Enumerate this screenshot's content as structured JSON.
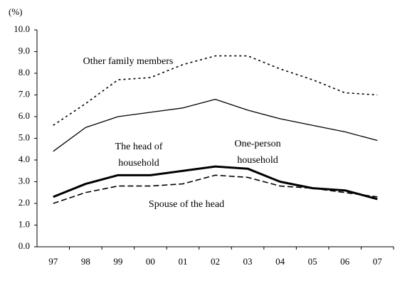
{
  "chart_data": {
    "type": "line",
    "y_label": "(%)",
    "categories": [
      "97",
      "98",
      "99",
      "00",
      "01",
      "02",
      "03",
      "04",
      "05",
      "06",
      "07"
    ],
    "series": [
      {
        "name": "Other family members",
        "color": "#000000",
        "line_style": "dotted",
        "line_width": "medium",
        "values": [
          5.6,
          6.6,
          7.7,
          7.8,
          8.4,
          8.8,
          8.8,
          8.2,
          7.7,
          7.1,
          7.0
        ]
      },
      {
        "name": "The head of household",
        "color": "#000000",
        "line_style": "solid",
        "line_width": "thin",
        "values": [
          4.4,
          5.5,
          6.0,
          6.2,
          6.4,
          6.8,
          6.3,
          5.9,
          5.6,
          5.3,
          4.9
        ]
      },
      {
        "name": "One-person household",
        "color": "#000000",
        "line_style": "solid",
        "line_width": "thick",
        "values": [
          2.3,
          2.9,
          3.3,
          3.3,
          3.5,
          3.7,
          3.6,
          3.0,
          2.7,
          2.6,
          2.2
        ]
      },
      {
        "name": "Spouse of the head",
        "color": "#000000",
        "line_style": "dashed",
        "line_width": "medium",
        "values": [
          2.0,
          2.5,
          2.8,
          2.8,
          2.9,
          3.3,
          3.2,
          2.8,
          2.7,
          2.5,
          2.3
        ]
      }
    ],
    "ylim": [
      0,
      10
    ],
    "yticks": [
      {
        "value": 0,
        "label": "0.0"
      },
      {
        "value": 1,
        "label": "1.0"
      },
      {
        "value": 2,
        "label": "2.0"
      },
      {
        "value": 3,
        "label": "3.0"
      },
      {
        "value": 4,
        "label": "4.0"
      },
      {
        "value": 5,
        "label": "5.0"
      },
      {
        "value": 6,
        "label": "6.0"
      },
      {
        "value": 7,
        "label": "7.0"
      },
      {
        "value": 8,
        "label": "8.0"
      },
      {
        "value": 9,
        "label": "9.0"
      },
      {
        "value": 10,
        "label": "10.0"
      }
    ],
    "grid": false
  }
}
